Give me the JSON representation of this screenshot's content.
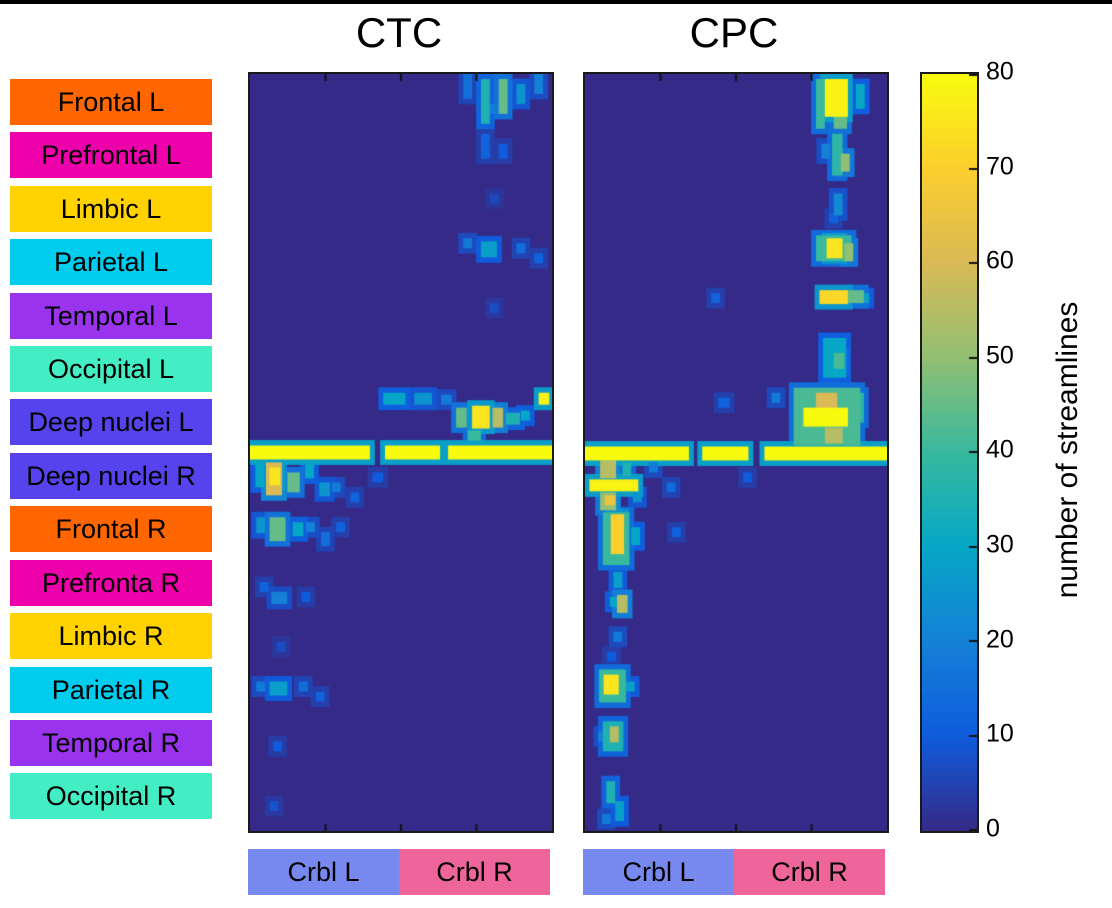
{
  "row_groups": [
    {
      "label": "Frontal L",
      "color": "#ff6600"
    },
    {
      "label": "Prefrontal L",
      "color": "#ee00aa"
    },
    {
      "label": "Limbic L",
      "color": "#ffd200"
    },
    {
      "label": "Parietal L",
      "color": "#00ccee"
    },
    {
      "label": "Temporal L",
      "color": "#9933ee"
    },
    {
      "label": "Occipital L",
      "color": "#44eec4"
    },
    {
      "label": "Deep nuclei L",
      "color": "#5544ee"
    },
    {
      "label": "Deep nuclei R",
      "color": "#5544ee"
    },
    {
      "label": "Frontal R",
      "color": "#ff6600"
    },
    {
      "label": "Prefronta R",
      "color": "#ee00aa"
    },
    {
      "label": "Limbic R",
      "color": "#ffd200"
    },
    {
      "label": "Parietal R",
      "color": "#00ccee"
    },
    {
      "label": "Temporal R",
      "color": "#9933ee"
    },
    {
      "label": "Occipital R",
      "color": "#44eec4"
    }
  ],
  "col_groups": [
    {
      "label": "Crbl L",
      "color": "#7788ee"
    },
    {
      "label": "Crbl R",
      "color": "#ee6699"
    }
  ],
  "colorbar": {
    "label": "number of streamlines",
    "min": 0,
    "max": 80,
    "ticks": [
      0,
      10,
      20,
      30,
      40,
      50,
      60,
      70,
      80
    ]
  },
  "chart_data": {
    "type": "heatmap",
    "description": "Connectivity matrices of number of streamlines between cerebral regions (rows, grouped left/right) and cerebellar targets (columns, Crbl L / Crbl R) for two tracts CTC and CPC. Background ~0 streamlines; hotspots listed as [row, col, width, height, value].",
    "grid": {
      "rows": 76,
      "cols": 34,
      "crbl_boundary_col": 17
    },
    "vmin": 0,
    "vmax": 80,
    "value_units": "number of streamlines",
    "colormap": {
      "name": "parula",
      "stops": [
        [
          0,
          "#352a87"
        ],
        [
          0.125,
          "#0f5cdd"
        ],
        [
          0.25,
          "#1481d6"
        ],
        [
          0.375,
          "#06a7c6"
        ],
        [
          0.5,
          "#38b99e"
        ],
        [
          0.625,
          "#92bf73"
        ],
        [
          0.75,
          "#d9ba56"
        ],
        [
          0.875,
          "#fcce2e"
        ],
        [
          1,
          "#f9fb0e"
        ]
      ]
    },
    "midline_row": 37.5,
    "panels": [
      {
        "title": "CTC",
        "hotspots": [
          [
            0,
            24,
            1,
            2.5,
            15
          ],
          [
            0.5,
            26,
            1,
            4.5,
            35
          ],
          [
            0.5,
            28,
            1,
            3.5,
            45
          ],
          [
            1,
            30,
            1,
            2,
            25
          ],
          [
            0,
            32,
            1,
            2,
            20
          ],
          [
            3,
            26.5,
            1.5,
            1,
            18
          ],
          [
            6,
            26,
            1,
            2.5,
            12
          ],
          [
            7,
            28,
            1,
            1.5,
            10
          ],
          [
            12,
            27,
            1,
            1,
            6
          ],
          [
            16.5,
            24,
            1,
            1,
            18
          ],
          [
            16.8,
            26,
            1.8,
            1.6,
            28
          ],
          [
            17,
            30,
            1,
            1,
            15
          ],
          [
            18,
            32,
            1,
            1,
            12
          ],
          [
            23,
            27,
            1,
            1,
            7
          ],
          [
            32,
            15,
            2.5,
            1.2,
            30
          ],
          [
            32,
            18.5,
            2,
            1.2,
            25
          ],
          [
            32.2,
            21.5,
            1.2,
            1,
            18
          ],
          [
            33.5,
            23.2,
            1.2,
            2,
            45
          ],
          [
            33.3,
            25,
            2,
            2.3,
            75
          ],
          [
            33.5,
            27.3,
            1.2,
            2,
            55
          ],
          [
            34,
            28.8,
            1.6,
            1.2,
            35
          ],
          [
            33.8,
            30.5,
            1,
            1,
            30
          ],
          [
            32,
            32.5,
            1.2,
            1.2,
            78
          ],
          [
            35.8,
            24.5,
            1.5,
            1,
            40
          ],
          [
            37.3,
            0,
            13.5,
            1.4,
            80
          ],
          [
            37.3,
            15.2,
            6.2,
            1.4,
            80
          ],
          [
            37.3,
            22.3,
            11.7,
            1.4,
            80
          ],
          [
            39,
            0.6,
            1,
            2.5,
            30
          ],
          [
            39,
            1.8,
            1.8,
            3.3,
            60
          ],
          [
            39.5,
            2.2,
            1.2,
            1.8,
            75
          ],
          [
            40,
            4.2,
            1.4,
            2,
            45
          ],
          [
            39,
            6.2,
            1,
            1.6,
            30
          ],
          [
            41,
            7.8,
            1.2,
            1.4,
            25
          ],
          [
            41,
            9.2,
            1,
            1,
            18
          ],
          [
            42,
            11.3,
            1,
            1,
            12
          ],
          [
            40,
            13.8,
            1.2,
            1,
            10
          ],
          [
            44.5,
            0.7,
            1,
            1.6,
            25
          ],
          [
            44.5,
            2.2,
            1.8,
            2.4,
            45
          ],
          [
            45,
            4.8,
            1.2,
            1.4,
            30
          ],
          [
            45,
            6.3,
            1,
            1,
            20
          ],
          [
            46,
            8,
            1,
            1.4,
            15
          ],
          [
            45,
            9.7,
            1,
            1,
            12
          ],
          [
            51,
            1.1,
            1,
            1,
            12
          ],
          [
            52,
            2.4,
            1.8,
            1.2,
            20
          ],
          [
            52,
            5.8,
            1,
            1,
            10
          ],
          [
            57,
            3,
            1,
            1,
            7
          ],
          [
            61,
            0.7,
            1,
            1,
            18
          ],
          [
            61,
            2.2,
            2,
            1.4,
            28
          ],
          [
            61,
            5.5,
            1,
            1,
            15
          ],
          [
            62,
            7.4,
            1,
            1,
            12
          ],
          [
            67,
            2.6,
            1,
            1,
            10
          ],
          [
            73,
            2.2,
            1,
            1,
            8
          ]
        ]
      },
      {
        "title": "CPC",
        "hotspots": [
          [
            0.5,
            26,
            1,
            5,
            40
          ],
          [
            0.5,
            27,
            2.6,
            3.8,
            78
          ],
          [
            1,
            30.5,
            1,
            2.5,
            30
          ],
          [
            4,
            28,
            1.5,
            1.5,
            45
          ],
          [
            6,
            27.8,
            1.2,
            4.2,
            38
          ],
          [
            8,
            28.8,
            1,
            1.8,
            50
          ],
          [
            7,
            26.6,
            1,
            1.5,
            20
          ],
          [
            12,
            28,
            1,
            2.2,
            22
          ],
          [
            14,
            27.5,
            1,
            1,
            12
          ],
          [
            16.2,
            26,
            4,
            2.6,
            40
          ],
          [
            16.5,
            27.2,
            1.8,
            2,
            75
          ],
          [
            17,
            29.2,
            1,
            1.8,
            50
          ],
          [
            21.7,
            26.4,
            3.2,
            1.4,
            72
          ],
          [
            21.7,
            29.6,
            1.8,
            1.3,
            45
          ],
          [
            22,
            31,
            1,
            1,
            28
          ],
          [
            22,
            14.2,
            1,
            1,
            12
          ],
          [
            26.5,
            26.8,
            2.6,
            4,
            30
          ],
          [
            28,
            28,
            1.2,
            1.6,
            42
          ],
          [
            31.5,
            23.5,
            7.5,
            5.8,
            42
          ],
          [
            32,
            26,
            2.4,
            1.6,
            60
          ],
          [
            33.5,
            24.6,
            5,
            1.9,
            80
          ],
          [
            35.5,
            27,
            2,
            1.6,
            55
          ],
          [
            32,
            30.2,
            1.2,
            3,
            38
          ],
          [
            32,
            21,
            1,
            1,
            18
          ],
          [
            32.5,
            15,
            1.3,
            1,
            12
          ],
          [
            37.4,
            0,
            11.7,
            1.4,
            80
          ],
          [
            37.4,
            13.2,
            5.2,
            1.4,
            80
          ],
          [
            37.4,
            20.2,
            13.8,
            1.4,
            80
          ],
          [
            38.8,
            1.7,
            1.8,
            1.8,
            55
          ],
          [
            40.7,
            0.5,
            5.5,
            1.2,
            78
          ],
          [
            42,
            1.7,
            1.8,
            1.8,
            50
          ],
          [
            42.3,
            2.2,
            1.2,
            1,
            65
          ],
          [
            39,
            4.2,
            1,
            1.4,
            35
          ],
          [
            42,
            5.4,
            1,
            1,
            25
          ],
          [
            39,
            7.2,
            1,
            1,
            18
          ],
          [
            41,
            9.2,
            1,
            1,
            14
          ],
          [
            40,
            17.8,
            1,
            1,
            10
          ],
          [
            44,
            2,
            3,
            5.3,
            40
          ],
          [
            44.2,
            2.9,
            1.5,
            4,
            70
          ],
          [
            45.5,
            5.2,
            1,
            1.8,
            30
          ],
          [
            48.3,
            4,
            1,
            1,
            28
          ],
          [
            45.5,
            9.8,
            1,
            1,
            12
          ],
          [
            50,
            3.2,
            1,
            1.6,
            28
          ],
          [
            52.3,
            3.6,
            1.2,
            1.8,
            55
          ],
          [
            52.5,
            2.8,
            1,
            1,
            30
          ],
          [
            56,
            3.2,
            1,
            1,
            18
          ],
          [
            58,
            2.5,
            1,
            1,
            10
          ],
          [
            59.8,
            1.6,
            3,
            3.3,
            40
          ],
          [
            60.3,
            2.1,
            1.7,
            2,
            75
          ],
          [
            61,
            4.6,
            1,
            1,
            28
          ],
          [
            65,
            2,
            2.3,
            3,
            35
          ],
          [
            65.5,
            2.8,
            1,
            1.6,
            55
          ],
          [
            66,
            1.5,
            1,
            1,
            20
          ],
          [
            71,
            2.4,
            1,
            2.2,
            35
          ],
          [
            73,
            3.4,
            1,
            2,
            28
          ],
          [
            74.3,
            1.9,
            1,
            1,
            18
          ]
        ]
      }
    ]
  }
}
